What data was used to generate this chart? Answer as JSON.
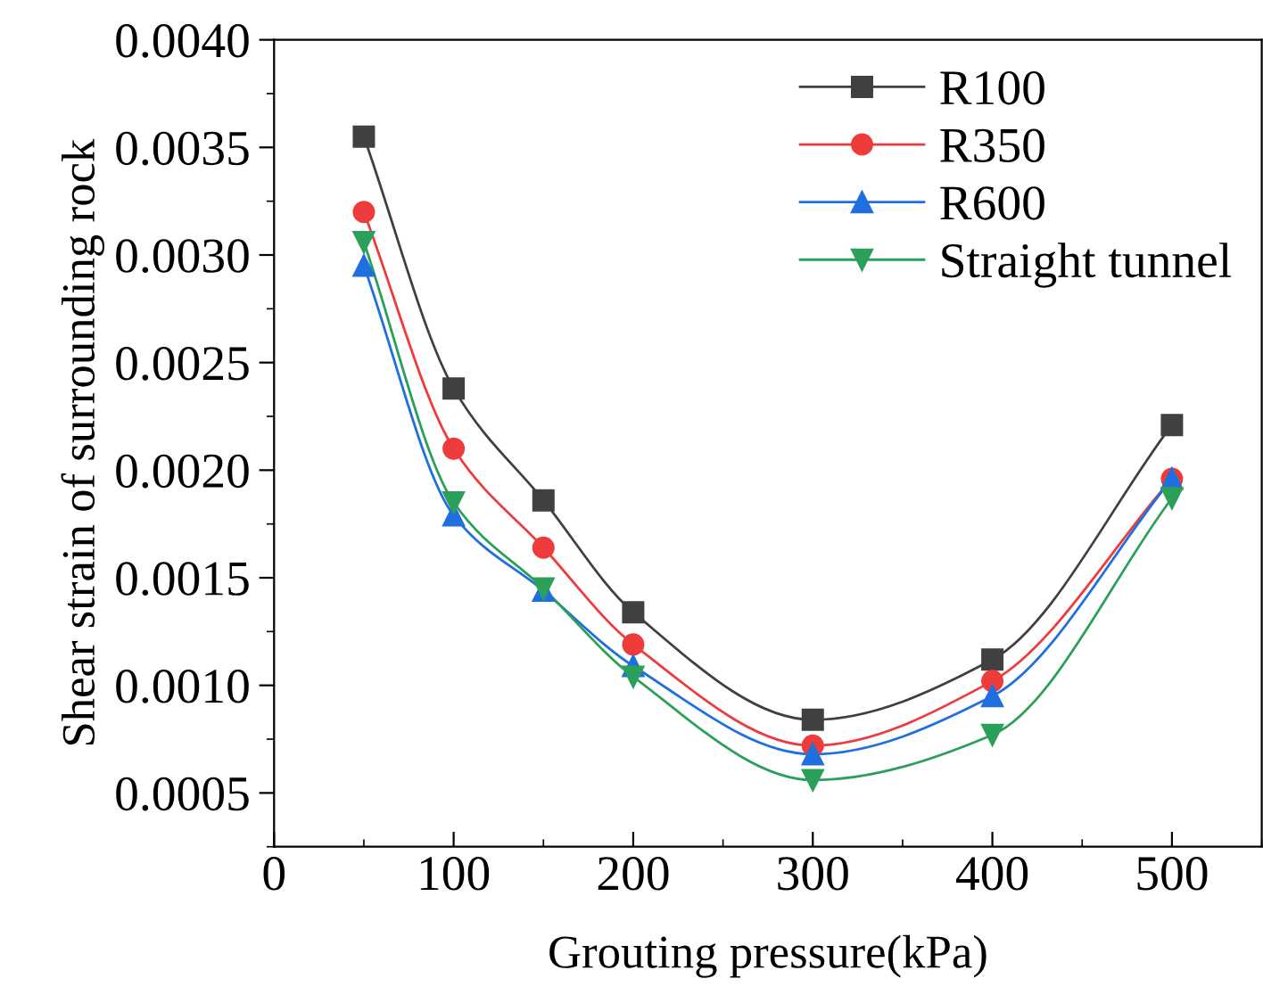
{
  "chart_data": {
    "type": "line",
    "xlabel": "Grouting pressure(kPa)",
    "ylabel": "Shear strain of surrounding rock",
    "x": [
      50,
      100,
      150,
      200,
      300,
      400,
      500
    ],
    "series": [
      {
        "name": "R100",
        "color": "#404040",
        "marker": "square",
        "values": [
          0.00355,
          0.00238,
          0.00186,
          0.00134,
          0.00084,
          0.00112,
          0.00221
        ]
      },
      {
        "name": "R350",
        "color": "#ee3b3b",
        "marker": "circle",
        "values": [
          0.0032,
          0.0021,
          0.00164,
          0.00119,
          0.00072,
          0.00102,
          0.00196
        ]
      },
      {
        "name": "R600",
        "color": "#1f6fe0",
        "marker": "triangle",
        "values": [
          0.00295,
          0.00179,
          0.00144,
          0.00109,
          0.00068,
          0.00095,
          0.00196
        ]
      },
      {
        "name": "Straight tunnel",
        "color": "#2ca05a",
        "marker": "triangle_down",
        "values": [
          0.00306,
          0.00185,
          0.00145,
          0.00104,
          0.00056,
          0.00077,
          0.00187
        ]
      }
    ],
    "xlim": [
      0,
      550
    ],
    "xticks": [
      0,
      100,
      200,
      300,
      400,
      500
    ],
    "ylim": [
      0.00025,
      0.004
    ],
    "yticks": [
      {
        "value": 0.0005,
        "label": "0.0005"
      },
      {
        "value": 0.001,
        "label": "0.0010"
      },
      {
        "value": 0.0015,
        "label": "0.0015"
      },
      {
        "value": 0.002,
        "label": "0.0020"
      },
      {
        "value": 0.0025,
        "label": "0.0025"
      },
      {
        "value": 0.003,
        "label": "0.0030"
      },
      {
        "value": 0.0035,
        "label": "0.0035"
      },
      {
        "value": 0.004,
        "label": "0.0040"
      }
    ],
    "grid": false,
    "legend": "top right",
    "line_style": "solid"
  }
}
